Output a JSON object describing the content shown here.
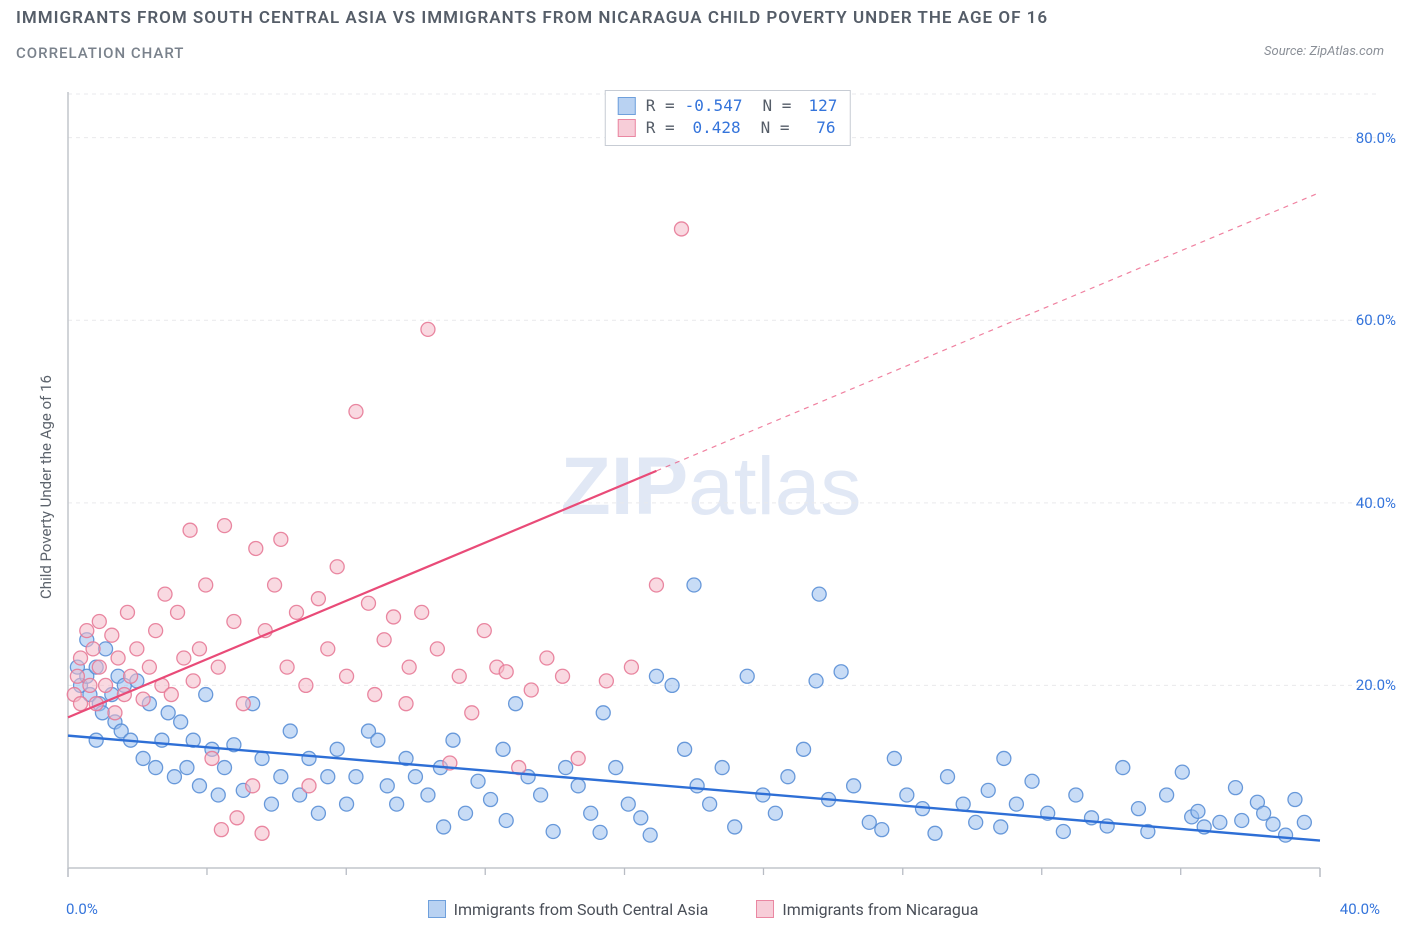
{
  "header": {
    "title": "IMMIGRANTS FROM SOUTH CENTRAL ASIA VS IMMIGRANTS FROM NICARAGUA CHILD POVERTY UNDER THE AGE OF 16",
    "subtitle": "CORRELATION CHART",
    "source_label": "Source:",
    "source_value": "ZipAtlas.com"
  },
  "watermark": {
    "bold": "ZIP",
    "light": "atlas"
  },
  "chart": {
    "type": "scatter",
    "y_label": "Child Poverty Under the Age of 16",
    "x_domain": [
      0,
      40
    ],
    "y_domain": [
      0,
      85
    ],
    "x_ticks_major": [
      0,
      40
    ],
    "x_tick_labels": [
      "0.0%",
      "40.0%"
    ],
    "x_ticks_minor": [
      4.44,
      8.89,
      13.33,
      17.78,
      22.22,
      26.67,
      31.11,
      35.55
    ],
    "y_ticks": [
      20,
      40,
      60,
      80
    ],
    "y_tick_labels": [
      "20.0%",
      "40.0%",
      "60.0%",
      "80.0%"
    ],
    "background_color": "#ffffff",
    "grid_color": "#e9e9ec",
    "axis_color": "#c2c6cc",
    "tick_color": "#b8bcc4",
    "value_label_color": "#3474db",
    "marker_radius": 7,
    "marker_opacity": 0.55,
    "series": [
      {
        "id": "south_central_asia",
        "label": "Immigrants from South Central Asia",
        "color_fill": "#9bbfee",
        "color_stroke": "#5a8fd6",
        "swatch_fill": "#b9d2f2",
        "swatch_stroke": "#6fa0dc",
        "R": "-0.547",
        "N": "127",
        "trend": {
          "x1": 0,
          "y1": 14.5,
          "x2": 40,
          "y2": 3.0,
          "color": "#2e6fd6",
          "width": 2.4,
          "dash": ""
        },
        "trend_ext": null,
        "points": [
          [
            0.3,
            22
          ],
          [
            0.4,
            20
          ],
          [
            0.6,
            21
          ],
          [
            0.7,
            19
          ],
          [
            0.6,
            25
          ],
          [
            0.9,
            22
          ],
          [
            1.0,
            18
          ],
          [
            1.1,
            17
          ],
          [
            1.2,
            24
          ],
          [
            0.9,
            14
          ],
          [
            1.4,
            19
          ],
          [
            1.5,
            16
          ],
          [
            1.6,
            21
          ],
          [
            1.8,
            20
          ],
          [
            1.7,
            15
          ],
          [
            2.0,
            14
          ],
          [
            2.2,
            20.5
          ],
          [
            2.4,
            12
          ],
          [
            2.6,
            18
          ],
          [
            2.8,
            11
          ],
          [
            3.0,
            14
          ],
          [
            3.2,
            17
          ],
          [
            3.4,
            10
          ],
          [
            3.6,
            16
          ],
          [
            3.8,
            11
          ],
          [
            4.0,
            14
          ],
          [
            4.2,
            9
          ],
          [
            4.4,
            19
          ],
          [
            4.6,
            13
          ],
          [
            4.8,
            8
          ],
          [
            5.0,
            11
          ],
          [
            5.3,
            13.5
          ],
          [
            5.6,
            8.5
          ],
          [
            5.9,
            18
          ],
          [
            6.2,
            12
          ],
          [
            6.5,
            7
          ],
          [
            6.8,
            10
          ],
          [
            7.1,
            15
          ],
          [
            7.4,
            8
          ],
          [
            7.7,
            12
          ],
          [
            8.0,
            6
          ],
          [
            8.3,
            10
          ],
          [
            8.6,
            13
          ],
          [
            8.9,
            7
          ],
          [
            9.2,
            10
          ],
          [
            9.6,
            15
          ],
          [
            9.9,
            14
          ],
          [
            10.2,
            9
          ],
          [
            10.5,
            7
          ],
          [
            10.8,
            12
          ],
          [
            11.1,
            10
          ],
          [
            11.5,
            8
          ],
          [
            11.9,
            11
          ],
          [
            12.3,
            14
          ],
          [
            12.7,
            6
          ],
          [
            13.1,
            9.5
          ],
          [
            13.5,
            7.5
          ],
          [
            13.9,
            13
          ],
          [
            14.3,
            18
          ],
          [
            14.7,
            10
          ],
          [
            15.1,
            8
          ],
          [
            15.5,
            4
          ],
          [
            15.9,
            11
          ],
          [
            16.3,
            9
          ],
          [
            16.7,
            6
          ],
          [
            17.1,
            17
          ],
          [
            17.5,
            11
          ],
          [
            17.9,
            7
          ],
          [
            18.3,
            5.5
          ],
          [
            18.8,
            21
          ],
          [
            19.3,
            20
          ],
          [
            19.7,
            13
          ],
          [
            20.1,
            9
          ],
          [
            20.5,
            7
          ],
          [
            20.9,
            11
          ],
          [
            21.3,
            4.5
          ],
          [
            21.7,
            21
          ],
          [
            22.2,
            8
          ],
          [
            22.6,
            6
          ],
          [
            23.0,
            10
          ],
          [
            23.5,
            13
          ],
          [
            23.9,
            20.5
          ],
          [
            24.3,
            7.5
          ],
          [
            24.7,
            21.5
          ],
          [
            25.1,
            9
          ],
          [
            25.6,
            5
          ],
          [
            26.0,
            4.2
          ],
          [
            26.4,
            12
          ],
          [
            26.8,
            8
          ],
          [
            27.3,
            6.5
          ],
          [
            27.7,
            3.8
          ],
          [
            28.1,
            10
          ],
          [
            28.6,
            7
          ],
          [
            29.0,
            5
          ],
          [
            29.4,
            8.5
          ],
          [
            29.9,
            12
          ],
          [
            29.8,
            4.5
          ],
          [
            30.3,
            7
          ],
          [
            30.8,
            9.5
          ],
          [
            31.3,
            6
          ],
          [
            31.8,
            4
          ],
          [
            32.2,
            8
          ],
          [
            32.7,
            5.5
          ],
          [
            33.2,
            4.6
          ],
          [
            33.7,
            11
          ],
          [
            34.2,
            6.5
          ],
          [
            34.5,
            4
          ],
          [
            35.1,
            8
          ],
          [
            35.6,
            10.5
          ],
          [
            35.9,
            5.6
          ],
          [
            36.1,
            6.2
          ],
          [
            36.3,
            4.5
          ],
          [
            36.8,
            5
          ],
          [
            37.3,
            8.8
          ],
          [
            37.5,
            5.2
          ],
          [
            38.0,
            7.2
          ],
          [
            38.2,
            6.0
          ],
          [
            38.5,
            4.8
          ],
          [
            38.9,
            3.6
          ],
          [
            39.2,
            7.5
          ],
          [
            39.5,
            5.0
          ],
          [
            20.0,
            31
          ],
          [
            18.6,
            3.6
          ],
          [
            12.0,
            4.5
          ],
          [
            14.0,
            5.2
          ],
          [
            17.0,
            3.9
          ],
          [
            24.0,
            30
          ]
        ]
      },
      {
        "id": "nicaragua",
        "label": "Immigrants from Nicaragua",
        "color_fill": "#f4b9c8",
        "color_stroke": "#e77a97",
        "swatch_fill": "#f7cdd8",
        "swatch_stroke": "#ea87a2",
        "R": "0.428",
        "N": "76",
        "trend": {
          "x1": 0,
          "y1": 16.5,
          "x2": 18.8,
          "y2": 43.5,
          "color": "#e94b78",
          "width": 2.2,
          "dash": ""
        },
        "trend_ext": {
          "x1": 18.8,
          "y1": 43.5,
          "x2": 40,
          "y2": 74,
          "color": "#e94b78",
          "width": 1.2,
          "dash": "5,5"
        },
        "points": [
          [
            0.2,
            19
          ],
          [
            0.3,
            21
          ],
          [
            0.4,
            23
          ],
          [
            0.4,
            18
          ],
          [
            0.6,
            26
          ],
          [
            0.7,
            20
          ],
          [
            0.8,
            24
          ],
          [
            0.9,
            18
          ],
          [
            1.0,
            22
          ],
          [
            1.0,
            27
          ],
          [
            1.2,
            20
          ],
          [
            1.4,
            25.5
          ],
          [
            1.5,
            17
          ],
          [
            1.6,
            23
          ],
          [
            1.8,
            19
          ],
          [
            1.9,
            28
          ],
          [
            2.0,
            21
          ],
          [
            2.2,
            24
          ],
          [
            2.4,
            18.5
          ],
          [
            2.6,
            22
          ],
          [
            2.8,
            26
          ],
          [
            3.0,
            20
          ],
          [
            3.1,
            30
          ],
          [
            3.3,
            19
          ],
          [
            3.5,
            28
          ],
          [
            3.7,
            23
          ],
          [
            3.9,
            37
          ],
          [
            4.0,
            20.5
          ],
          [
            4.2,
            24
          ],
          [
            4.4,
            31
          ],
          [
            4.6,
            12
          ],
          [
            4.8,
            22
          ],
          [
            5.0,
            37.5
          ],
          [
            5.3,
            27
          ],
          [
            5.6,
            18
          ],
          [
            5.9,
            9
          ],
          [
            6.0,
            35
          ],
          [
            6.3,
            26
          ],
          [
            6.6,
            31
          ],
          [
            6.8,
            36
          ],
          [
            7.0,
            22
          ],
          [
            7.3,
            28
          ],
          [
            7.6,
            20
          ],
          [
            8.0,
            29.5
          ],
          [
            8.3,
            24
          ],
          [
            8.6,
            33
          ],
          [
            8.9,
            21
          ],
          [
            9.2,
            50
          ],
          [
            9.6,
            29
          ],
          [
            9.8,
            19
          ],
          [
            10.1,
            25
          ],
          [
            10.4,
            27.5
          ],
          [
            10.8,
            18
          ],
          [
            10.9,
            22
          ],
          [
            11.3,
            28
          ],
          [
            11.5,
            59
          ],
          [
            11.8,
            24
          ],
          [
            12.2,
            11.5
          ],
          [
            12.5,
            21
          ],
          [
            12.9,
            17
          ],
          [
            13.3,
            26
          ],
          [
            13.7,
            22
          ],
          [
            14.0,
            21.5
          ],
          [
            14.4,
            11
          ],
          [
            14.8,
            19.5
          ],
          [
            15.3,
            23
          ],
          [
            15.8,
            21
          ],
          [
            16.3,
            12
          ],
          [
            17.2,
            20.5
          ],
          [
            18.0,
            22
          ],
          [
            18.8,
            31
          ],
          [
            7.7,
            9
          ],
          [
            6.2,
            3.8
          ],
          [
            5.4,
            5.5
          ],
          [
            4.9,
            4.2
          ],
          [
            19.6,
            70
          ]
        ]
      }
    ],
    "bottom_legend": [
      {
        "series": "south_central_asia"
      },
      {
        "series": "nicaragua"
      }
    ]
  }
}
